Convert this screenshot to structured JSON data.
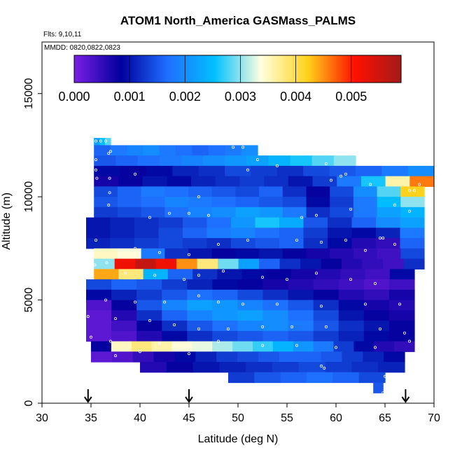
{
  "chart_data": {
    "type": "heatmap",
    "title": "ATOM1 North_America GASMass_PALMS",
    "flights_label": "Flts: 9,10,11",
    "dates_label": "MMDD: 0820,0822,0823",
    "xlabel": "Latitude (deg N)",
    "ylabel": "Altitude (m)",
    "xlim": [
      30,
      70
    ],
    "ylim": [
      0,
      17500
    ],
    "x_ticks": [
      "30",
      "35",
      "40",
      "45",
      "50",
      "55",
      "60",
      "65",
      "70"
    ],
    "y_ticks": [
      "0",
      "5000",
      "10000",
      "15000"
    ],
    "colorbar": {
      "range": [
        0,
        0.0059
      ],
      "ticks": [
        "0.000",
        "0.001",
        "0.002",
        "0.003",
        "0.004",
        "0.005"
      ],
      "colors": [
        "#7a1fe6",
        "#00009c",
        "#1f6fff",
        "#00c0ff",
        "#ffffe0",
        "#ffd21a",
        "#ff1000",
        "#a31a1a"
      ]
    },
    "arrow_latitudes": [
      34.7,
      45.0,
      67.1
    ],
    "bands": [
      {
        "y0": 12500,
        "y1": 12850,
        "x0": 35.3,
        "x1": 37.0,
        "values": [
          0.0022,
          0.0025,
          0.0028
        ]
      },
      {
        "y0": 12000,
        "y1": 12500,
        "x0": 35.3,
        "x1": 52.0,
        "values": [
          0.0016,
          0.0018,
          0.0019,
          0.002,
          0.0018,
          0.0017,
          0.0016,
          0.0017,
          0.0018,
          0.002
        ]
      },
      {
        "y0": 11500,
        "y1": 12000,
        "x0": 35.3,
        "x1": 62.0,
        "values": [
          0.0015,
          0.0016,
          0.0017,
          0.0018,
          0.0019,
          0.002,
          0.0021,
          0.0022,
          0.0024,
          0.0026,
          0.0028,
          0.003
        ]
      },
      {
        "y0": 11000,
        "y1": 11500,
        "x0": 35.3,
        "x1": 70.0,
        "values": [
          0.0009,
          0.0008,
          0.0009,
          0.0011,
          0.0012,
          0.0014,
          0.0013,
          0.0012,
          0.0014,
          0.0015,
          0.0016,
          0.0018,
          0.002
        ]
      },
      {
        "y0": 10500,
        "y1": 11000,
        "x0": 35.3,
        "x1": 70.0,
        "values": [
          0.0007,
          0.0008,
          0.001,
          0.0009,
          0.0011,
          0.0012,
          0.0013,
          0.0012,
          0.001,
          0.0013,
          0.0018,
          0.0026,
          0.0036,
          0.0046
        ]
      },
      {
        "y0": 10000,
        "y1": 10500,
        "x0": 35.3,
        "x1": 69.0,
        "values": [
          0.0014,
          0.0016,
          0.0018,
          0.0017,
          0.0016,
          0.0015,
          0.0014,
          0.0016,
          0.0012,
          0.0008,
          0.0014,
          0.002,
          0.0028,
          0.0042
        ]
      },
      {
        "y0": 9500,
        "y1": 10000,
        "x0": 35.3,
        "x1": 69.0,
        "values": [
          0.0015,
          0.0016,
          0.0017,
          0.0019,
          0.0018,
          0.0017,
          0.0016,
          0.0015,
          0.0014,
          0.0009,
          0.0013,
          0.0018,
          0.0025,
          0.003
        ]
      },
      {
        "y0": 9000,
        "y1": 9500,
        "x0": 35.3,
        "x1": 69.0,
        "values": [
          0.0013,
          0.0014,
          0.0015,
          0.0017,
          0.0019,
          0.002,
          0.0022,
          0.0021,
          0.0018,
          0.0012,
          0.0014,
          0.0018,
          0.0022,
          0.0024
        ]
      },
      {
        "y0": 8500,
        "y1": 9000,
        "x0": 34.5,
        "x1": 69.0,
        "values": [
          0.001,
          0.0011,
          0.0012,
          0.0013,
          0.0015,
          0.0017,
          0.0021,
          0.0026,
          0.0023,
          0.0015,
          0.0012,
          0.0016,
          0.002,
          0.0022
        ]
      },
      {
        "y0": 8000,
        "y1": 8500,
        "x0": 34.5,
        "x1": 69.0,
        "values": [
          0.001,
          0.0011,
          0.0012,
          0.0014,
          0.0016,
          0.0018,
          0.0019,
          0.0017,
          0.0016,
          0.0013,
          0.001,
          0.0009,
          0.0011,
          0.0018
        ]
      },
      {
        "y0": 7500,
        "y1": 8000,
        "x0": 34.5,
        "x1": 69.0,
        "values": [
          0.0011,
          0.0012,
          0.0013,
          0.0014,
          0.0013,
          0.0012,
          0.0014,
          0.0015,
          0.0016,
          0.0012,
          0.0009,
          0.0006,
          0.0005,
          0.0016
        ]
      },
      {
        "y0": 7000,
        "y1": 7500,
        "x0": 35.3,
        "x1": 69.0,
        "values": [
          0.0035,
          0.0034,
          0.0018,
          0.0012,
          0.001,
          0.0008,
          0.0009,
          0.001,
          0.0008,
          0.0007,
          0.0006,
          0.0005,
          0.0004,
          0.0014
        ]
      },
      {
        "y0": 6500,
        "y1": 7000,
        "x0": 35.3,
        "x1": 69.0,
        "values": [
          0.003,
          0.0052,
          0.0056,
          0.0052,
          0.0045,
          0.0038,
          0.0029,
          0.0022,
          0.0016,
          0.0012,
          0.001,
          0.0008,
          0.0006,
          0.0005,
          0.0004,
          0.0012
        ]
      },
      {
        "y0": 6000,
        "y1": 6500,
        "x0": 35.3,
        "x1": 68.0,
        "values": [
          0.0044,
          0.0038,
          0.0024,
          0.0016,
          0.0012,
          0.001,
          0.0009,
          0.0008,
          0.0007,
          0.0006,
          0.0005,
          0.0004,
          0.0009
        ]
      },
      {
        "y0": 5500,
        "y1": 6000,
        "x0": 34.5,
        "x1": 68.0,
        "values": [
          0.0014,
          0.0016,
          0.0015,
          0.0013,
          0.0011,
          0.0009,
          0.0008,
          0.0007,
          0.0006,
          0.0005,
          0.0004,
          0.0003,
          0.0004
        ]
      },
      {
        "y0": 5000,
        "y1": 5500,
        "x0": 34.5,
        "x1": 68.0,
        "values": [
          0.0009,
          0.0011,
          0.0013,
          0.0015,
          0.0017,
          0.0016,
          0.0014,
          0.0012,
          0.001,
          0.0008,
          0.0006,
          0.0005,
          0.0007
        ]
      },
      {
        "y0": 4500,
        "y1": 5000,
        "x0": 34.5,
        "x1": 68.0,
        "values": [
          0.0003,
          0.0008,
          0.0015,
          0.0019,
          0.0022,
          0.0021,
          0.0019,
          0.0017,
          0.0015,
          0.0012,
          0.0009,
          0.0007,
          0.0006
        ]
      },
      {
        "y0": 4000,
        "y1": 4500,
        "x0": 34.5,
        "x1": 68.0,
        "values": [
          0.0002,
          0.0006,
          0.0012,
          0.0016,
          0.0019,
          0.0021,
          0.0022,
          0.002,
          0.0017,
          0.0014,
          0.001,
          0.0008,
          0.0007
        ]
      },
      {
        "y0": 3500,
        "y1": 4000,
        "x0": 34.5,
        "x1": 68.0,
        "values": [
          0.0002,
          0.0004,
          0.0008,
          0.0012,
          0.0015,
          0.0017,
          0.0019,
          0.002,
          0.0018,
          0.0015,
          0.0012,
          0.001,
          0.0008
        ]
      },
      {
        "y0": 3000,
        "y1": 3500,
        "x0": 34.5,
        "x1": 68.0,
        "values": [
          0.0002,
          0.0003,
          0.0006,
          0.0009,
          0.0012,
          0.0014,
          0.0015,
          0.0016,
          0.0015,
          0.0013,
          0.0011,
          0.0009,
          0.0008
        ]
      },
      {
        "y0": 2500,
        "y1": 3000,
        "x0": 35.0,
        "x1": 68.0,
        "values": [
          0.0008,
          0.0035,
          0.0038,
          0.0036,
          0.0034,
          0.0033,
          0.0031,
          0.0029,
          0.0027,
          0.0024,
          0.0021,
          0.0018,
          0.0013,
          0.0009,
          0.0006,
          0.0005
        ]
      },
      {
        "y0": 2000,
        "y1": 2500,
        "x0": 35.0,
        "x1": 67.0,
        "values": [
          0.0002,
          0.0003,
          0.0005,
          0.0007,
          0.0009,
          0.0011,
          0.0013,
          0.0014,
          0.0015,
          0.0016,
          0.0016,
          0.0015,
          0.0013,
          0.0011,
          0.0009
        ]
      },
      {
        "y0": 1500,
        "y1": 2000,
        "x0": 40.0,
        "x1": 67.0,
        "values": [
          0.0006,
          0.0008,
          0.001,
          0.0011,
          0.0012,
          0.0013,
          0.0014,
          0.0013,
          0.0012,
          0.0011
        ]
      },
      {
        "y0": 1000,
        "y1": 1500,
        "x0": 49.0,
        "x1": 65.0,
        "values": [
          0.0013,
          0.0015,
          0.0016,
          0.0017,
          0.0016,
          0.0014
        ]
      },
      {
        "y0": 500,
        "y1": 1000,
        "x0": 63.8,
        "x1": 64.8,
        "values": [
          0.0015
        ]
      }
    ],
    "points": [
      [
        35.5,
        12700
      ],
      [
        36.0,
        12700
      ],
      [
        36.5,
        12700
      ],
      [
        37.0,
        12200
      ],
      [
        36.8,
        12100
      ],
      [
        35.5,
        11800
      ],
      [
        35.5,
        11300
      ],
      [
        35.6,
        10900
      ],
      [
        36.9,
        10900
      ],
      [
        36.9,
        10200
      ],
      [
        36.8,
        9600
      ],
      [
        39.5,
        11100
      ],
      [
        41.0,
        9000
      ],
      [
        43.0,
        9200
      ],
      [
        45.0,
        9200
      ],
      [
        46.0,
        10000
      ],
      [
        47.0,
        9100
      ],
      [
        49.5,
        12400
      ],
      [
        50.5,
        12400
      ],
      [
        51.0,
        11300
      ],
      [
        52.0,
        11800
      ],
      [
        54.0,
        11500
      ],
      [
        59.0,
        11600
      ],
      [
        59.5,
        10800
      ],
      [
        60.5,
        11000
      ],
      [
        61.0,
        11100
      ],
      [
        56.5,
        9000
      ],
      [
        58.0,
        9100
      ],
      [
        61.5,
        9400
      ],
      [
        63.5,
        10600
      ],
      [
        66.0,
        9600
      ],
      [
        67.5,
        10300
      ],
      [
        68.0,
        10300
      ],
      [
        68.5,
        10600
      ],
      [
        67.5,
        9300
      ],
      [
        64.5,
        8000
      ],
      [
        64.8,
        8000
      ],
      [
        35.5,
        7900
      ],
      [
        39.5,
        7500
      ],
      [
        42.0,
        7300
      ],
      [
        45.0,
        7200
      ],
      [
        48.0,
        7700
      ],
      [
        51.0,
        7900
      ],
      [
        56.0,
        7900
      ],
      [
        58.5,
        7800
      ],
      [
        61.0,
        7900
      ],
      [
        63.0,
        7400
      ],
      [
        66.0,
        7700
      ],
      [
        35.4,
        6700
      ],
      [
        36.6,
        6800
      ],
      [
        38.5,
        6300
      ],
      [
        41.5,
        6200
      ],
      [
        44.5,
        6000
      ],
      [
        46.0,
        6200
      ],
      [
        48.5,
        6400
      ],
      [
        52.5,
        6100
      ],
      [
        55.0,
        6000
      ],
      [
        58.0,
        6300
      ],
      [
        61.5,
        6000
      ],
      [
        64.0,
        5800
      ],
      [
        36.5,
        5000
      ],
      [
        39.5,
        4900
      ],
      [
        42.5,
        4900
      ],
      [
        46.0,
        5200
      ],
      [
        48.0,
        4900
      ],
      [
        50.5,
        4800
      ],
      [
        54.0,
        4800
      ],
      [
        58.5,
        4700
      ],
      [
        63.0,
        4800
      ],
      [
        66.5,
        4800
      ],
      [
        34.7,
        4200
      ],
      [
        37.5,
        4100
      ],
      [
        41.0,
        4000
      ],
      [
        43.5,
        3800
      ],
      [
        46.0,
        3600
      ],
      [
        49.0,
        3600
      ],
      [
        52.5,
        3700
      ],
      [
        55.5,
        3700
      ],
      [
        59.0,
        3700
      ],
      [
        64.5,
        3600
      ],
      [
        67.0,
        3400
      ],
      [
        35.0,
        3200
      ],
      [
        37.0,
        3000
      ],
      [
        42.0,
        2900
      ],
      [
        48.0,
        3000
      ],
      [
        52.5,
        2800
      ],
      [
        56.0,
        2800
      ],
      [
        60.0,
        2700
      ],
      [
        64.0,
        2700
      ],
      [
        67.5,
        3000
      ],
      [
        37.5,
        2300
      ],
      [
        40.0,
        2500
      ],
      [
        45.0,
        2400
      ],
      [
        58.5,
        1800
      ],
      [
        58.8,
        1700
      ],
      [
        65.0,
        1300
      ],
      [
        64.8,
        500
      ]
    ]
  }
}
